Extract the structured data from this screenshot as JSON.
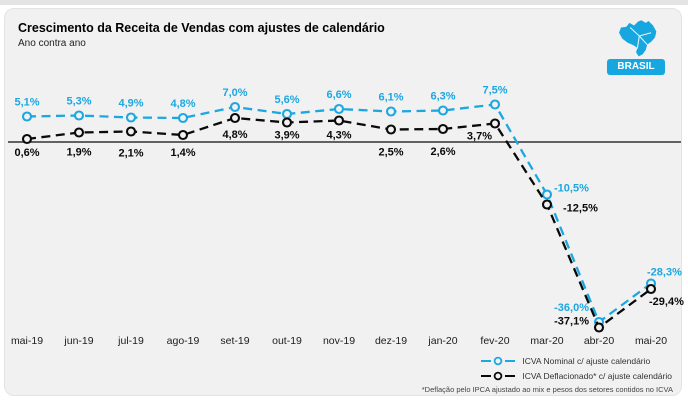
{
  "header": {
    "title": "Crescimento da Receita de Vendas com ajustes de calendário",
    "subtitle": "Ano contra ano",
    "region_label": "BRASIL",
    "region_icon": "brazil-map-icon"
  },
  "colors": {
    "accent_cyan": "#17a7e0",
    "series_nominal": "#1da7e0",
    "series_deflated": "#0a0a0a",
    "axis_line": "#4d4d4d",
    "card_bg": "#f1f1f2"
  },
  "chart_data": {
    "type": "line",
    "title": "Crescimento da Receita de Vendas com ajustes de calendário",
    "subtitle": "Ano contra ano",
    "categories": [
      "mai-19",
      "jun-19",
      "jul-19",
      "ago-19",
      "set-19",
      "out-19",
      "nov-19",
      "dez-19",
      "jan-20",
      "fev-20",
      "mar-20",
      "abr-20",
      "mai-20"
    ],
    "series": [
      {
        "name": "ICVA Nominal c/ ajuste calendário",
        "color": "#1da7e0",
        "values": [
          5.1,
          5.3,
          4.9,
          4.8,
          7.0,
          5.6,
          6.6,
          6.1,
          6.3,
          7.5,
          -10.5,
          -36.0,
          -28.3
        ],
        "labels": [
          "5,1%",
          "5,3%",
          "4,9%",
          "4,8%",
          "7,0%",
          "5,6%",
          "6,6%",
          "6,1%",
          "6,3%",
          "7,5%",
          "-10,5%",
          "-36,0%",
          "-28,3%"
        ],
        "label_pos": [
          [
            0,
            -11,
            "middle"
          ],
          [
            0,
            -11,
            "middle"
          ],
          [
            0,
            -11,
            "middle"
          ],
          [
            0,
            -11,
            "middle"
          ],
          [
            0,
            -11,
            "middle"
          ],
          [
            0,
            -11,
            "middle"
          ],
          [
            0,
            -11,
            "middle"
          ],
          [
            0,
            -11,
            "middle"
          ],
          [
            0,
            -11,
            "middle"
          ],
          [
            0,
            -11,
            "middle"
          ],
          [
            7,
            -3,
            "start"
          ],
          [
            -10,
            -11,
            "end"
          ],
          [
            -4,
            -8,
            "start"
          ]
        ]
      },
      {
        "name": "ICVA Deflacionado* c/ ajuste calendário",
        "color": "#0a0a0a",
        "values": [
          0.6,
          1.9,
          2.1,
          1.4,
          4.8,
          3.9,
          4.3,
          2.5,
          2.6,
          3.7,
          -12.5,
          -37.1,
          -29.4
        ],
        "labels": [
          "0,6%",
          "1,9%",
          "2,1%",
          "1,4%",
          "4,8%",
          "3,9%",
          "4,3%",
          "2,5%",
          "2,6%",
          "3,7%",
          "-12,5%",
          "-37,1%",
          "-29,4%"
        ],
        "label_pos": [
          [
            0,
            17,
            "middle"
          ],
          [
            0,
            23,
            "middle"
          ],
          [
            0,
            25,
            "middle"
          ],
          [
            0,
            21,
            "middle"
          ],
          [
            0,
            20,
            "middle"
          ],
          [
            0,
            16,
            "middle"
          ],
          [
            0,
            18,
            "middle"
          ],
          [
            0,
            26,
            "middle"
          ],
          [
            0,
            26,
            "middle"
          ],
          [
            -3,
            16,
            "end"
          ],
          [
            16,
            7,
            "start"
          ],
          [
            -10,
            -3,
            "end"
          ],
          [
            -2,
            16,
            "start"
          ]
        ]
      }
    ],
    "ylim": [
      -40,
      10
    ],
    "zero_line": true,
    "grid": false,
    "line_style": "dashed",
    "marker": "open-circle",
    "legend_position": "bottom-right"
  },
  "legend": {
    "items": [
      {
        "label": "ICVA Nominal c/ ajuste calendário"
      },
      {
        "label": "ICVA Deflacionado* c/ ajuste calendário"
      }
    ]
  },
  "footnote": "*Deflação  pelo  IPCA ajustado ao mix e pesos  dos  setores  contidos  no ICVA"
}
